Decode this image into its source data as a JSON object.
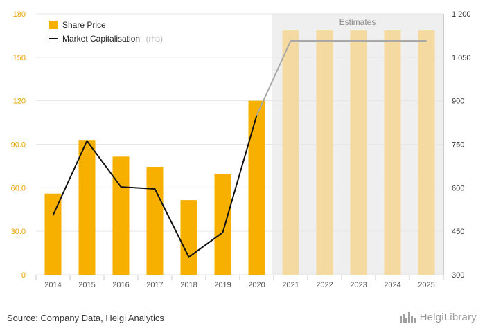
{
  "chart_data": {
    "type": "bar",
    "categories": [
      "2014",
      "2015",
      "2016",
      "2017",
      "2018",
      "2019",
      "2020",
      "2021",
      "2022",
      "2023",
      "2024",
      "2025"
    ],
    "series": [
      {
        "name": "Share Price",
        "axis": "left",
        "kind": "bar",
        "color": "#f7b000",
        "values": [
          56,
          93,
          81.5,
          74.5,
          51.5,
          69.5,
          120,
          168.5,
          168.5,
          168.5,
          168.5,
          168.5
        ]
      },
      {
        "name": "Market Capitalisation",
        "suffix": "(rhs)",
        "axis": "right",
        "kind": "line",
        "color": "#111111",
        "values": [
          505,
          762,
          603,
          596,
          361,
          446,
          850,
          1107,
          1107,
          1107,
          1107,
          1107
        ]
      }
    ],
    "estimate_from_index": 7,
    "estimate_label": "Estimates",
    "ylim_left": [
      0,
      180
    ],
    "yticks_left": [
      "0",
      "30.0",
      "60.0",
      "90.0",
      "120",
      "150",
      "180"
    ],
    "ylim_right": [
      300,
      1200
    ],
    "yticks_right": [
      "300",
      "450",
      "600",
      "750",
      "900",
      "1 050",
      "1 200"
    ],
    "colors": {
      "bar": "#f7b000",
      "bar_estimate": "#f4d9a0",
      "line_estimate": "#a8a8a8",
      "estimate_bg": "#efefef"
    }
  },
  "footer": {
    "source": "Source: Company Data, Helgi Analytics",
    "brand": "HelgiLibrary",
    "brand_icon": "city-skyline-icon"
  }
}
